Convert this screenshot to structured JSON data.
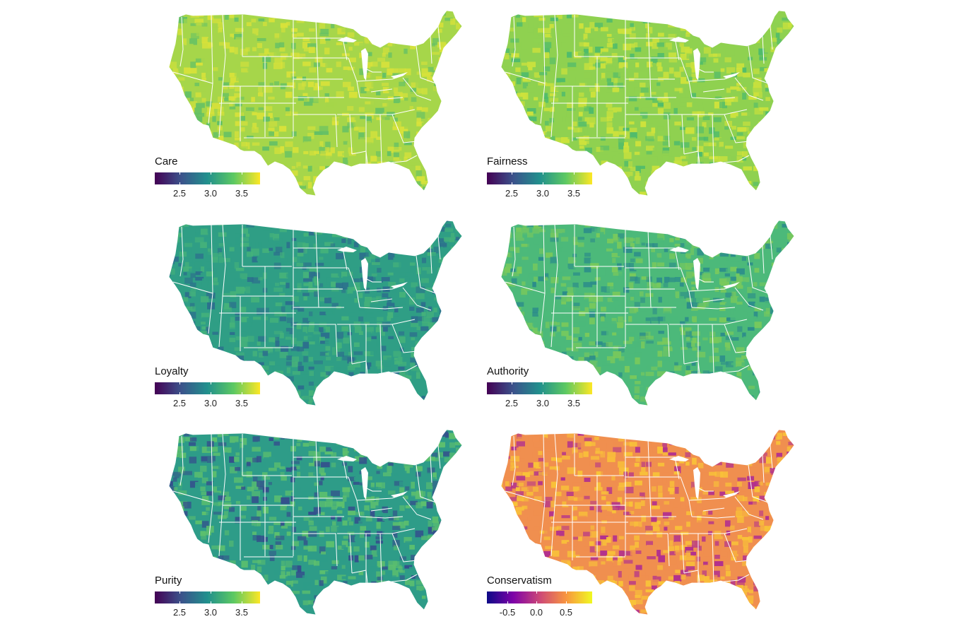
{
  "chart_data": [
    {
      "type": "choropleth",
      "title": "Care",
      "legend_title": "Care",
      "colormap": [
        "#440154",
        "#3b528b",
        "#21908d",
        "#5dc962",
        "#fde725"
      ],
      "range": [
        2.1,
        3.8
      ],
      "ticks": [
        "2.5",
        "3.0",
        "3.5"
      ],
      "tick_values": [
        2.5,
        3.0,
        3.5
      ],
      "fill": "#a6d64a",
      "accent": "#d8e23a",
      "dark": "#63c066"
    },
    {
      "type": "choropleth",
      "title": "Fairness",
      "legend_title": "Fairness",
      "colormap": [
        "#440154",
        "#3b528b",
        "#21908d",
        "#5dc962",
        "#fde725"
      ],
      "range": [
        2.1,
        3.8
      ],
      "ticks": [
        "2.5",
        "3.0",
        "3.5"
      ],
      "tick_values": [
        2.5,
        3.0,
        3.5
      ],
      "fill": "#8fd150",
      "accent": "#cde23c",
      "dark": "#4fbb6c"
    },
    {
      "type": "choropleth",
      "title": "Loyalty",
      "legend_title": "Loyalty",
      "colormap": [
        "#440154",
        "#3b528b",
        "#21908d",
        "#5dc962",
        "#fde725"
      ],
      "range": [
        2.1,
        3.8
      ],
      "ticks": [
        "2.5",
        "3.0",
        "3.5"
      ],
      "tick_values": [
        2.5,
        3.0,
        3.5
      ],
      "fill": "#2f9e85",
      "accent": "#45b27a",
      "dark": "#2c6f8d"
    },
    {
      "type": "choropleth",
      "title": "Authority",
      "legend_title": "Authority",
      "colormap": [
        "#440154",
        "#3b528b",
        "#21908d",
        "#5dc962",
        "#fde725"
      ],
      "range": [
        2.1,
        3.8
      ],
      "ticks": [
        "2.5",
        "3.0",
        "3.5"
      ],
      "tick_values": [
        2.5,
        3.0,
        3.5
      ],
      "fill": "#4cb97a",
      "accent": "#79c95c",
      "dark": "#2c8d8a"
    },
    {
      "type": "choropleth",
      "title": "Purity",
      "legend_title": "Purity",
      "colormap": [
        "#440154",
        "#3b528b",
        "#21908d",
        "#5dc962",
        "#fde725"
      ],
      "range": [
        2.1,
        3.8
      ],
      "ticks": [
        "2.5",
        "3.0",
        "3.5"
      ],
      "tick_values": [
        2.5,
        3.0,
        3.5
      ],
      "fill": "#2e9c88",
      "accent": "#5cbf6e",
      "dark": "#34508c"
    },
    {
      "type": "choropleth",
      "title": "Conservatism",
      "legend_title": "Conservatism",
      "colormap": [
        "#0d0887",
        "#7e03a8",
        "#cc4778",
        "#f89540",
        "#f0f921"
      ],
      "range": [
        -0.85,
        0.95
      ],
      "ticks": [
        "-0.5",
        "0.0",
        "0.5"
      ],
      "tick_values": [
        -0.5,
        0.0,
        0.5
      ],
      "fill": "#f08f4f",
      "accent": "#f9c338",
      "dark": "#b2308e"
    }
  ]
}
